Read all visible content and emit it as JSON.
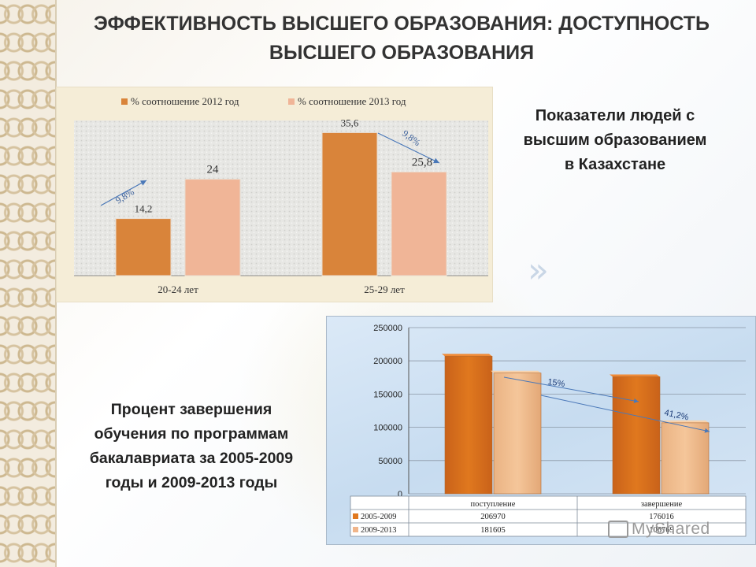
{
  "slide": {
    "title_line1": "ЭФФЕКТИВНОСТЬ ВЫСШЕГО ОБРАЗОВАНИЯ: ДОСТУПНОСТЬ",
    "title_line2": "ВЫСШЕГО ОБРАЗОВАНИЯ",
    "right_caption": [
      "Показатели людей с",
      "высшим образованием",
      "в Казахстане"
    ],
    "left_caption": [
      "Процент завершения",
      "обучения по программам",
      "бакалавриата за 2005-2009",
      "годы и  2009-2013 годы"
    ],
    "watermark": "MyShared"
  },
  "colors": {
    "series_2012": "#d9843a",
    "series_2013": "#f0b597",
    "series_2005": "#e0781e",
    "series_2009": "#f5c69a",
    "arrow": "#4a78b8"
  },
  "chart_data": [
    {
      "type": "bar",
      "categories": [
        "20-24 лет",
        "25-29 лет"
      ],
      "series": [
        {
          "name": "% соотношение 2012 год",
          "values": [
            14.2,
            35.6
          ],
          "labels": [
            "14,2",
            "35,6"
          ]
        },
        {
          "name": "% соотношение 2013 год",
          "values": [
            24,
            25.8
          ],
          "labels": [
            "24",
            "25,8"
          ]
        }
      ],
      "annotations": [
        "9,8%",
        "9,8%"
      ],
      "legend": "top",
      "ylim": [
        0,
        40
      ]
    },
    {
      "type": "bar",
      "categories": [
        "поступление",
        "завершение"
      ],
      "series": [
        {
          "name": "2005-2009",
          "values": [
            206970,
            176016
          ]
        },
        {
          "name": "2009-2013",
          "values": [
            181605,
            106769
          ]
        }
      ],
      "y_ticks": [
        "0",
        "50000",
        "100000",
        "150000",
        "200000",
        "250000"
      ],
      "ylim": [
        0,
        250000
      ],
      "annotations": [
        "15%",
        "41,2%"
      ],
      "grid": true,
      "data_table": true
    }
  ]
}
